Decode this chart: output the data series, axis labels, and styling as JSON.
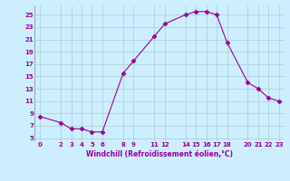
{
  "x": [
    0,
    2,
    3,
    4,
    5,
    6,
    8,
    9,
    11,
    12,
    14,
    15,
    16,
    17,
    18,
    20,
    21,
    22,
    23
  ],
  "y": [
    8.5,
    7.5,
    6.5,
    6.5,
    6.0,
    6.0,
    15.5,
    17.5,
    21.5,
    23.5,
    25.0,
    25.5,
    25.5,
    25.0,
    20.5,
    14.0,
    13.0,
    11.5,
    11.0
  ],
  "line_color": "#990099",
  "marker": "D",
  "marker_size": 2.5,
  "bg_color": "#cceeff",
  "grid_color": "#aacccc",
  "xlabel": "Windchill (Refroidissement éolien,°C)",
  "xlabel_color": "#990099",
  "tick_color": "#990099",
  "yticks": [
    5,
    7,
    9,
    11,
    13,
    15,
    17,
    19,
    21,
    23,
    25
  ],
  "xticks": [
    0,
    2,
    3,
    4,
    5,
    6,
    8,
    9,
    11,
    12,
    14,
    15,
    16,
    17,
    18,
    20,
    21,
    22,
    23
  ],
  "xlim": [
    -0.5,
    23.5
  ],
  "ylim": [
    4.5,
    26.5
  ]
}
